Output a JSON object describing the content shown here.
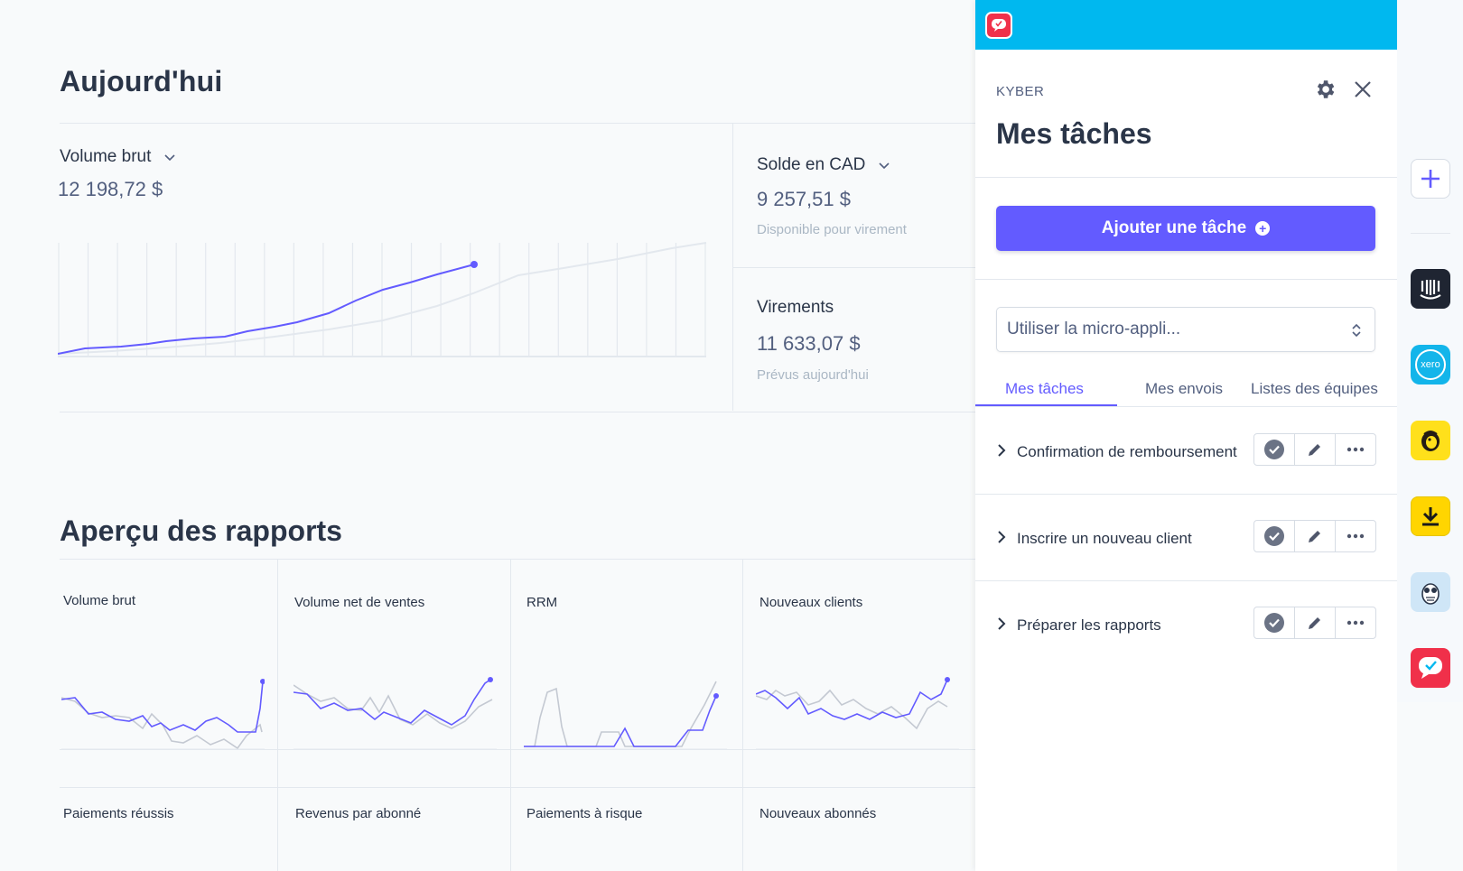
{
  "dashboard": {
    "today_title": "Aujourd'hui",
    "gross_volume": {
      "label": "Volume brut",
      "value": "12 198,72 $"
    },
    "balance": {
      "label": "Solde en CAD",
      "value": "9 257,51 $",
      "sub": "Disponible pour virement"
    },
    "payouts": {
      "label": "Virements",
      "value": "11 633,07 $",
      "sub": "Prévus aujourd'hui"
    },
    "reports_title": "Aperçu des rapports",
    "reports": [
      {
        "label": "Volume brut"
      },
      {
        "label": "Volume net de ventes"
      },
      {
        "label": "RRM"
      },
      {
        "label": "Nouveaux clients"
      },
      {
        "label": "Paiements réussis"
      },
      {
        "label": "Revenus par abonné"
      },
      {
        "label": "Paiements à risque"
      },
      {
        "label": "Nouveaux abonnés"
      }
    ]
  },
  "panel": {
    "brand": "KYBER",
    "title": "Mes tâches",
    "add_button": "Ajouter une tâche",
    "select_placeholder": "Utiliser la micro-appli...",
    "tabs": [
      {
        "label": "Mes tâches",
        "active": true
      },
      {
        "label": "Mes envois",
        "active": false
      },
      {
        "label": "Listes des équipes",
        "active": false
      }
    ],
    "tasks": [
      {
        "label": "Confirmation de remboursement"
      },
      {
        "label": "Inscrire un nouveau client"
      },
      {
        "label": "Préparer les rapports"
      }
    ]
  },
  "rail": {
    "icons": [
      "plus-icon",
      "intercom-icon",
      "xero-icon",
      "mailchimp-icon",
      "download-icon",
      "owl-icon",
      "kyber-icon"
    ],
    "xero_text": "xero"
  },
  "colors": {
    "accent": "#635bff",
    "topbar": "#00b8ef",
    "kyber_red": "#f0304a"
  }
}
